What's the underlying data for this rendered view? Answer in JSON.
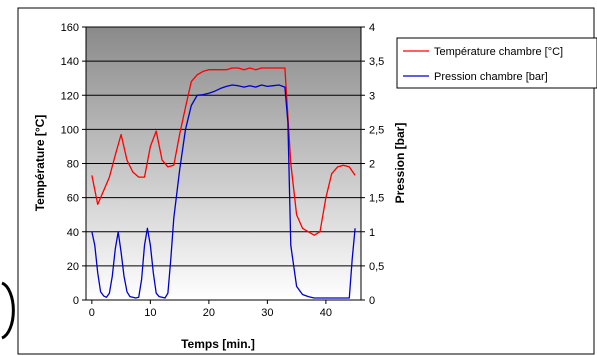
{
  "chart_data": {
    "type": "line",
    "title": "",
    "xlabel": "Temps [min.]",
    "ylabel_left": "Température [°C]",
    "ylabel_right": "Pression [bar]",
    "xlim": [
      -1,
      46
    ],
    "xticks": [
      0,
      10,
      20,
      30,
      40
    ],
    "ylim_left": [
      0,
      160
    ],
    "yticks_left": [
      0,
      20,
      40,
      60,
      80,
      100,
      120,
      140,
      160
    ],
    "ylim_right": [
      0,
      4
    ],
    "yticks_right": [
      "0",
      "0,5",
      "1",
      "1,5",
      "2",
      "2,5",
      "3",
      "3,5",
      "4"
    ],
    "grid": true,
    "legend_position": "right",
    "colors": {
      "plot_bg_top": "#8a8a8a",
      "plot_bg_bottom": "#ffffff",
      "temperature": "#ff0000",
      "pressure": "#0000cc"
    },
    "series": [
      {
        "name": "Température chambre [°C]",
        "axis": "left",
        "x": [
          0,
          1,
          2,
          3,
          4,
          5,
          6,
          7,
          8,
          9,
          10,
          11,
          12,
          13,
          14,
          15,
          16,
          17,
          18,
          19,
          20,
          21,
          22,
          23,
          24,
          25,
          26,
          27,
          28,
          29,
          30,
          31,
          32,
          33,
          34,
          35,
          36,
          37,
          38,
          39,
          40,
          41,
          42,
          43,
          44,
          45
        ],
        "values": [
          73,
          56,
          64,
          72,
          85,
          97,
          82,
          75,
          72,
          72,
          90,
          99,
          82,
          78,
          79,
          97,
          113,
          128,
          132,
          134,
          135,
          135,
          135,
          135,
          136,
          136,
          135,
          136,
          135,
          136,
          136,
          136,
          136,
          136,
          80,
          50,
          42,
          40,
          38,
          40,
          60,
          74,
          78,
          79,
          78,
          73
        ]
      },
      {
        "name": "Pression chambre [bar]",
        "axis": "right",
        "x": [
          0,
          0.5,
          1,
          1.5,
          2,
          2.5,
          3,
          3.5,
          4,
          4.5,
          5,
          5.5,
          6,
          6.5,
          7,
          7.5,
          8,
          8.5,
          9,
          9.5,
          10,
          10.5,
          11,
          11.5,
          12,
          12.5,
          13,
          13.5,
          14,
          15,
          16,
          17,
          18,
          19,
          20,
          21,
          22,
          23,
          24,
          25,
          26,
          27,
          28,
          29,
          30,
          31,
          32,
          33,
          33.5,
          34,
          35,
          36,
          37,
          38,
          40,
          42,
          44,
          44.5,
          45
        ],
        "values": [
          1.0,
          0.8,
          0.4,
          0.12,
          0.06,
          0.04,
          0.1,
          0.35,
          0.75,
          1.0,
          0.7,
          0.35,
          0.12,
          0.05,
          0.04,
          0.03,
          0.04,
          0.3,
          0.8,
          1.05,
          0.8,
          0.4,
          0.1,
          0.05,
          0.04,
          0.03,
          0.1,
          0.6,
          1.2,
          1.9,
          2.5,
          2.85,
          3.0,
          3.01,
          3.03,
          3.06,
          3.1,
          3.13,
          3.15,
          3.14,
          3.12,
          3.14,
          3.12,
          3.15,
          3.13,
          3.14,
          3.15,
          3.12,
          2.6,
          0.8,
          0.2,
          0.08,
          0.05,
          0.03,
          0.03,
          0.03,
          0.03,
          0.6,
          1.05
        ]
      }
    ]
  }
}
